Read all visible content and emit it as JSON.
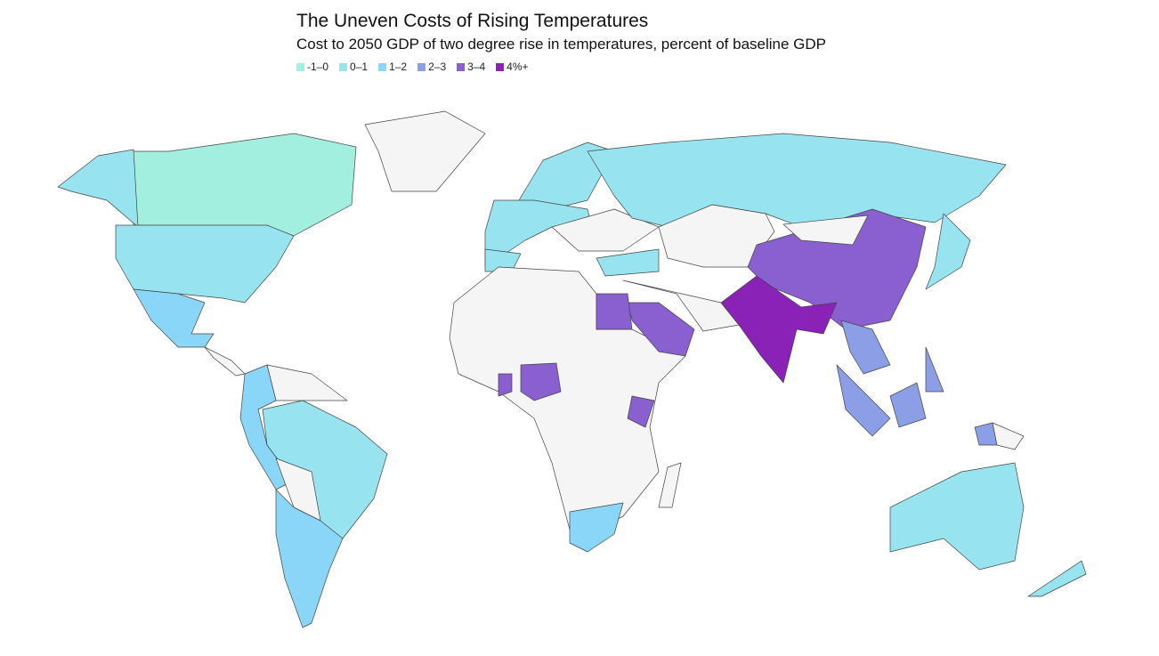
{
  "header": {
    "title": "The Uneven Costs of Rising Temperatures",
    "subtitle": "Cost to 2050 GDP of two degree rise in temperatures, percent of baseline GDP"
  },
  "legend": [
    {
      "label": "-1–0",
      "color": "#a2efe0"
    },
    {
      "label": "0–1",
      "color": "#97e3ef"
    },
    {
      "label": "1–2",
      "color": "#8ad6f8"
    },
    {
      "label": "2–3",
      "color": "#8c9ee6"
    },
    {
      "label": "3–4",
      "color": "#8a5fd0"
    },
    {
      "label": "4%+",
      "color": "#8a22b8"
    }
  ]
}
